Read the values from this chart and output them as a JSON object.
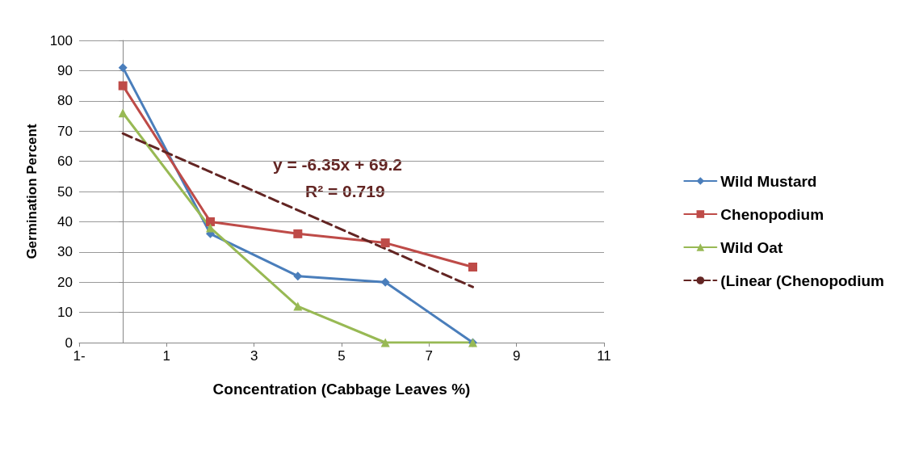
{
  "chart_data": {
    "type": "line",
    "xlabel": "Concentration (Cabbage Leaves %)",
    "ylabel": "Germination Percent",
    "xlim": [
      -1,
      11
    ],
    "xticks": [
      {
        "value": -1,
        "label": "1-"
      },
      1,
      3,
      5,
      7,
      9,
      11
    ],
    "ylim": [
      0,
      100
    ],
    "yticks": [
      0,
      10,
      20,
      30,
      40,
      50,
      60,
      70,
      80,
      90,
      100
    ],
    "grid": "y",
    "legend": "right",
    "x": [
      0,
      2,
      4,
      6,
      8
    ],
    "series": [
      {
        "name": "Wild Mustard",
        "color": "#4a7ebb",
        "marker": "diamond",
        "values": [
          91,
          36,
          22,
          20,
          0
        ]
      },
      {
        "name": "Chenopodium",
        "color": "#be4b48",
        "marker": "square",
        "values": [
          85,
          40,
          36,
          33,
          25
        ]
      },
      {
        "name": "Wild Oat",
        "color": "#98b954",
        "marker": "triangle",
        "values": [
          76,
          38,
          12,
          0,
          0
        ]
      },
      {
        "name": "(Linear (Chenopodium",
        "color": "#632523",
        "marker": "none",
        "line_style": "dashed",
        "x": [
          0,
          8
        ],
        "values": [
          69.2,
          18.4
        ]
      }
    ],
    "annotations": [
      "y = -6.35x + 69.2",
      "R² = 0.719"
    ]
  }
}
